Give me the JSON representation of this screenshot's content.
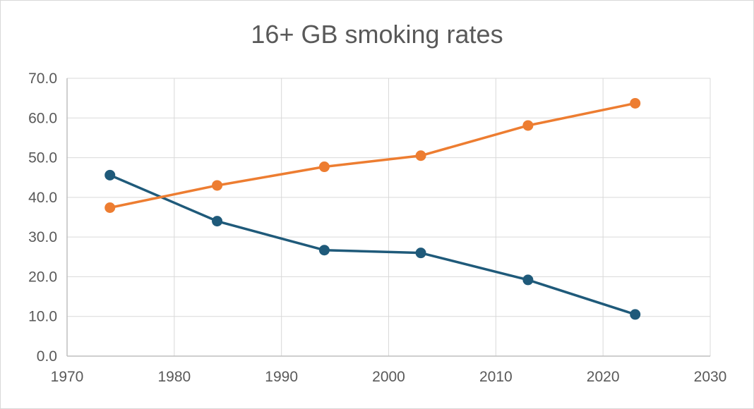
{
  "chart_data": {
    "type": "scatter",
    "title": "16+ GB smoking rates",
    "xlabel": "",
    "ylabel": "",
    "xlim": [
      1970,
      2030
    ],
    "ylim": [
      0,
      70
    ],
    "x_ticks": [
      "1970",
      "1980",
      "1990",
      "2000",
      "2010",
      "2020",
      "2030"
    ],
    "y_ticks": [
      "0.0",
      "10.0",
      "20.0",
      "30.0",
      "40.0",
      "50.0",
      "60.0",
      "70.0"
    ],
    "grid": true,
    "legend": "none",
    "series": [
      {
        "color": "#1f5a7a",
        "points": [
          [
            1974,
            45.6
          ],
          [
            1984,
            34.0
          ],
          [
            1994,
            26.7
          ],
          [
            2003,
            26.0
          ],
          [
            2013,
            19.2
          ],
          [
            2023,
            10.5
          ]
        ]
      },
      {
        "color": "#ed7d31",
        "points": [
          [
            1974,
            37.4
          ],
          [
            1984,
            43.0
          ],
          [
            1994,
            47.7
          ],
          [
            2003,
            50.5
          ],
          [
            2013,
            58.1
          ],
          [
            2023,
            63.7
          ]
        ]
      }
    ]
  }
}
